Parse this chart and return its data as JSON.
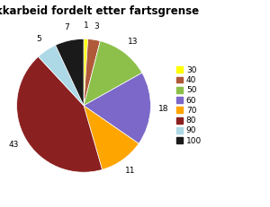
{
  "title": "Trafikkarbeid fordelt etter fartsgrense",
  "labels": [
    "30",
    "40",
    "50",
    "60",
    "70",
    "80",
    "90",
    "100"
  ],
  "values": [
    1,
    3,
    13,
    18,
    11,
    43,
    5,
    7
  ],
  "colors": [
    "#ffff00",
    "#b05a3a",
    "#8dc04a",
    "#7b68c8",
    "#ffa500",
    "#8b2020",
    "#add8e6",
    "#1a1a1a"
  ],
  "legend_labels": [
    "30",
    "40",
    "50",
    "60",
    "70",
    "80",
    "90",
    "100"
  ],
  "legend_colors": [
    "#ffff00",
    "#b05a3a",
    "#8dc04a",
    "#7b68c8",
    "#ffa500",
    "#8b2020",
    "#add8e6",
    "#1a1a1a"
  ],
  "startangle": 90,
  "title_fontsize": 8.5,
  "label_fontsize": 6.5,
  "legend_fontsize": 6.5
}
